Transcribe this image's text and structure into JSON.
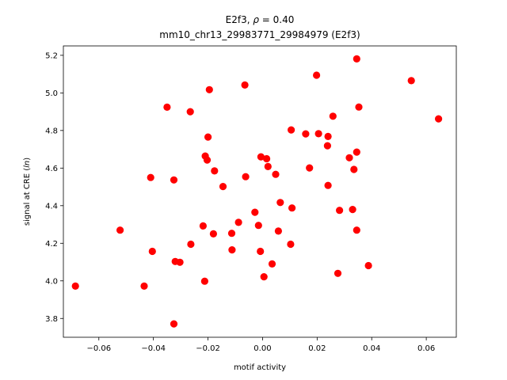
{
  "chart_data": {
    "type": "scatter",
    "title_line1": "E2f3, ρ = 0.40",
    "title_line2": "mm10_chr13_29983771_29984979 (E2f3)",
    "xlabel": "motif activity",
    "ylabel": "signal at CRE (ln)",
    "xlim": [
      -0.073,
      0.071
    ],
    "ylim": [
      3.7,
      5.25
    ],
    "xticks": [
      -0.06,
      -0.04,
      -0.02,
      0.0,
      0.02,
      0.04,
      0.06
    ],
    "xtick_labels": [
      "−0.06",
      "−0.04",
      "−0.02",
      "0.00",
      "0.02",
      "0.04",
      "0.06"
    ],
    "yticks": [
      3.8,
      4.0,
      4.2,
      4.4,
      4.6,
      4.8,
      5.0,
      5.2
    ],
    "ytick_labels": [
      "3.8",
      "4.0",
      "4.2",
      "4.4",
      "4.6",
      "4.8",
      "5.0",
      "5.2"
    ],
    "marker_color": "#ff0000",
    "grid": false,
    "points": [
      {
        "x": -0.0686,
        "y": 3.972
      },
      {
        "x": -0.0522,
        "y": 4.27
      },
      {
        "x": -0.0434,
        "y": 3.972
      },
      {
        "x": -0.041,
        "y": 4.55
      },
      {
        "x": -0.0404,
        "y": 4.157
      },
      {
        "x": -0.035,
        "y": 4.924
      },
      {
        "x": -0.0325,
        "y": 4.537
      },
      {
        "x": -0.032,
        "y": 4.103
      },
      {
        "x": -0.0303,
        "y": 4.099
      },
      {
        "x": -0.0325,
        "y": 3.771
      },
      {
        "x": -0.0265,
        "y": 4.9
      },
      {
        "x": -0.0263,
        "y": 4.195
      },
      {
        "x": -0.0218,
        "y": 4.292
      },
      {
        "x": -0.021,
        "y": 4.664
      },
      {
        "x": -0.0203,
        "y": 4.643
      },
      {
        "x": -0.02,
        "y": 4.765
      },
      {
        "x": -0.0195,
        "y": 5.017
      },
      {
        "x": -0.0212,
        "y": 3.998
      },
      {
        "x": -0.018,
        "y": 4.25
      },
      {
        "x": -0.0176,
        "y": 4.585
      },
      {
        "x": -0.0145,
        "y": 4.502
      },
      {
        "x": -0.0113,
        "y": 4.253
      },
      {
        "x": -0.0112,
        "y": 4.165
      },
      {
        "x": -0.0088,
        "y": 4.311
      },
      {
        "x": -0.0065,
        "y": 5.042
      },
      {
        "x": -0.0062,
        "y": 4.554
      },
      {
        "x": -0.0028,
        "y": 4.365
      },
      {
        "x": -0.0015,
        "y": 4.295
      },
      {
        "x": -0.0006,
        "y": 4.66
      },
      {
        "x": -0.0008,
        "y": 4.157
      },
      {
        "x": 0.0005,
        "y": 4.022
      },
      {
        "x": 0.0015,
        "y": 4.65
      },
      {
        "x": 0.002,
        "y": 4.608
      },
      {
        "x": 0.0035,
        "y": 4.09
      },
      {
        "x": 0.0048,
        "y": 4.567
      },
      {
        "x": 0.0058,
        "y": 4.265
      },
      {
        "x": 0.0065,
        "y": 4.417
      },
      {
        "x": 0.0105,
        "y": 4.803
      },
      {
        "x": 0.0108,
        "y": 4.388
      },
      {
        "x": 0.0103,
        "y": 4.195
      },
      {
        "x": 0.0158,
        "y": 4.782
      },
      {
        "x": 0.0172,
        "y": 4.601
      },
      {
        "x": 0.0198,
        "y": 5.094
      },
      {
        "x": 0.0205,
        "y": 4.783
      },
      {
        "x": 0.0238,
        "y": 4.719
      },
      {
        "x": 0.024,
        "y": 4.768
      },
      {
        "x": 0.024,
        "y": 4.508
      },
      {
        "x": 0.0258,
        "y": 4.876
      },
      {
        "x": 0.0282,
        "y": 4.375
      },
      {
        "x": 0.0276,
        "y": 4.04
      },
      {
        "x": 0.0318,
        "y": 4.655
      },
      {
        "x": 0.0335,
        "y": 4.593
      },
      {
        "x": 0.033,
        "y": 4.38
      },
      {
        "x": 0.0345,
        "y": 5.181
      },
      {
        "x": 0.0345,
        "y": 4.685
      },
      {
        "x": 0.0353,
        "y": 4.925
      },
      {
        "x": 0.0345,
        "y": 4.27
      },
      {
        "x": 0.0388,
        "y": 4.081
      },
      {
        "x": 0.0545,
        "y": 5.065
      },
      {
        "x": 0.0645,
        "y": 4.862
      }
    ]
  }
}
